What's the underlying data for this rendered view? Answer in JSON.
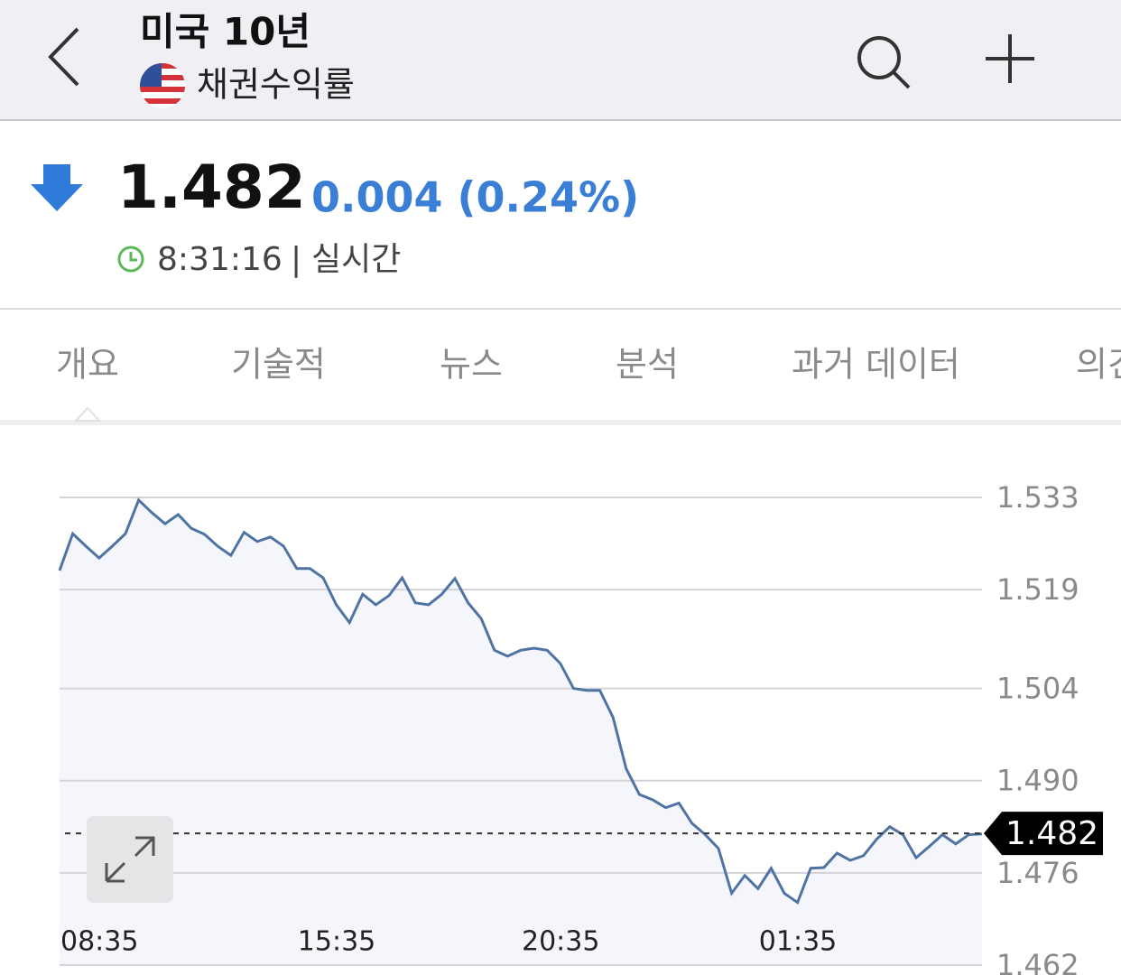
{
  "header": {
    "title": "미국 10년",
    "subtitle": "채권수익률"
  },
  "quote": {
    "price": "1.482",
    "change": "0.004 (0.24%)",
    "time": "8:31:16",
    "status": "실시간"
  },
  "tabs": [
    "개요",
    "기술적",
    "뉴스",
    "분석",
    "과거 데이터",
    "의견"
  ],
  "chart_data": {
    "type": "line",
    "categories": [
      "08:35",
      null,
      null,
      null,
      null,
      null,
      null,
      null,
      null,
      null,
      null,
      null,
      null,
      null,
      null,
      null,
      null,
      null,
      "15:35",
      null,
      null,
      null,
      null,
      null,
      null,
      null,
      null,
      null,
      null,
      null,
      null,
      null,
      null,
      null,
      null,
      "20:35",
      null,
      null,
      null,
      null,
      null,
      null,
      null,
      null,
      null,
      null,
      null,
      null,
      null,
      null,
      null,
      null,
      null,
      "01:35",
      null,
      null,
      null,
      null,
      null,
      null,
      null,
      null,
      null,
      null,
      null,
      null,
      null,
      null,
      null,
      null,
      null
    ],
    "series": [
      {
        "name": "미국 10년",
        "color": "#4f74a3",
        "values": [
          1.5219,
          1.5275,
          1.5256,
          1.5238,
          1.5256,
          1.5275,
          1.5326,
          1.5307,
          1.529,
          1.5304,
          1.5283,
          1.5274,
          1.5256,
          1.5242,
          1.5277,
          1.5263,
          1.527,
          1.5256,
          1.5222,
          1.5222,
          1.5208,
          1.5167,
          1.514,
          1.5183,
          1.5167,
          1.5181,
          1.5208,
          1.517,
          1.5167,
          1.5183,
          1.5207,
          1.517,
          1.5146,
          1.5098,
          1.5089,
          1.5098,
          1.5101,
          1.5098,
          1.5078,
          1.504,
          1.5037,
          1.5037,
          1.4996,
          1.4918,
          1.4879,
          1.4871,
          1.4859,
          1.4866,
          1.4835,
          1.4818,
          1.4797,
          1.4729,
          1.4756,
          1.4736,
          1.4767,
          1.4729,
          1.4715,
          1.4767,
          1.4768,
          1.479,
          1.4779,
          1.4786,
          1.4811,
          1.483,
          1.4818,
          1.4783,
          1.48,
          1.4818,
          1.4804,
          1.4818,
          1.4819
        ]
      }
    ],
    "reference_line": 1.482,
    "ylim": [
      1.462,
      1.533
    ],
    "yticks": [
      1.462,
      1.476,
      1.49,
      {
        "value": 1.49,
        "label": "1.490"
      },
      1.504,
      1.519,
      1.533
    ],
    "grid": true
  }
}
